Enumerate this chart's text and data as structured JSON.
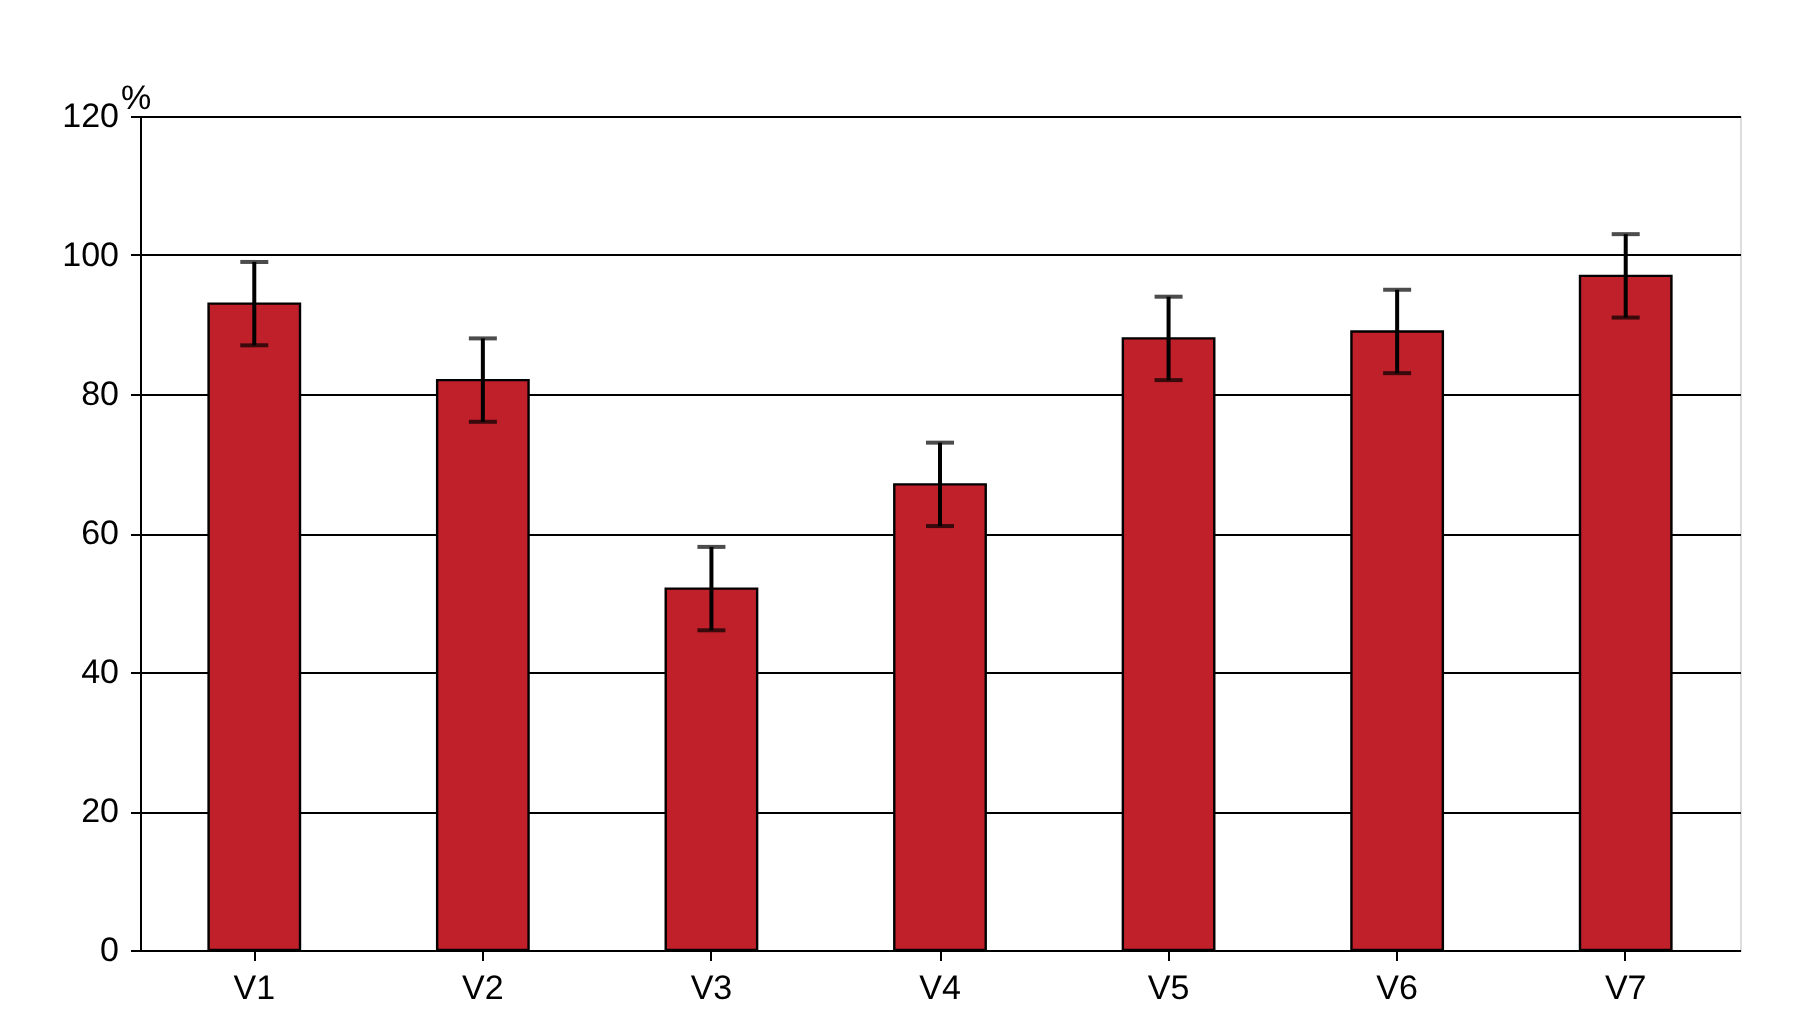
{
  "chart_data": {
    "type": "bar",
    "ylabel": "%",
    "categories": [
      "V1",
      "V2",
      "V3",
      "V4",
      "V5",
      "V6",
      "V7"
    ],
    "values": [
      93,
      82,
      52,
      67,
      88,
      89,
      97
    ],
    "errors": [
      6,
      6,
      6,
      6,
      6,
      6,
      6
    ],
    "color": "#c0202a",
    "ylim": [
      0,
      120
    ],
    "yticks": [
      0,
      20,
      40,
      60,
      80,
      100,
      120
    ],
    "grid": "y"
  }
}
